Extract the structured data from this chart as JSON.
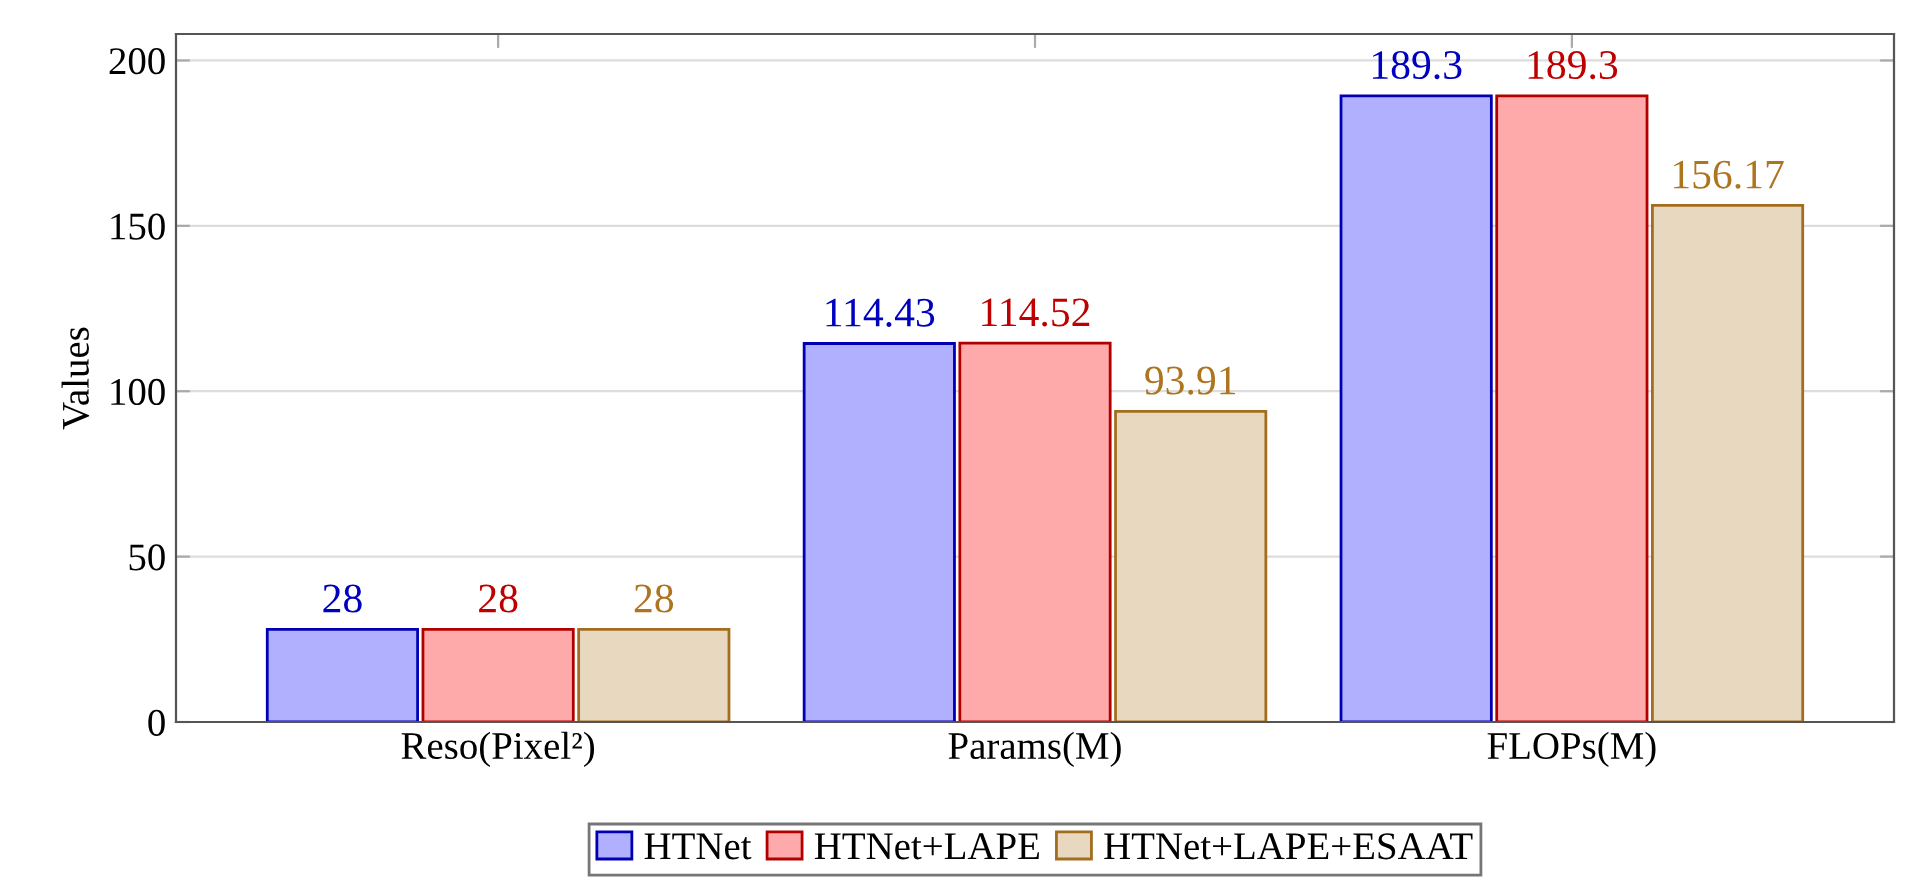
{
  "chart_data": {
    "type": "bar",
    "ylabel": "Values",
    "categories": [
      "Reso(Pixel²)",
      "Params(M)",
      "FLOPs(M)"
    ],
    "series": [
      {
        "name": "HTNet",
        "color": "#b0b0ff",
        "values": [
          28,
          114.43,
          189.3
        ]
      },
      {
        "name": "HTNet+LAPE",
        "color": "#ffaaaa",
        "values": [
          28,
          114.52,
          189.3
        ]
      },
      {
        "name": "HTNet+LAPE+ESAAT",
        "color": "#e8d8c0",
        "values": [
          28,
          93.91,
          156.17
        ]
      }
    ],
    "ylim": [
      0,
      208
    ],
    "yticks": [
      0,
      50,
      100,
      150,
      200
    ],
    "grid": "y",
    "legend": "bottom",
    "data_labels": true
  }
}
